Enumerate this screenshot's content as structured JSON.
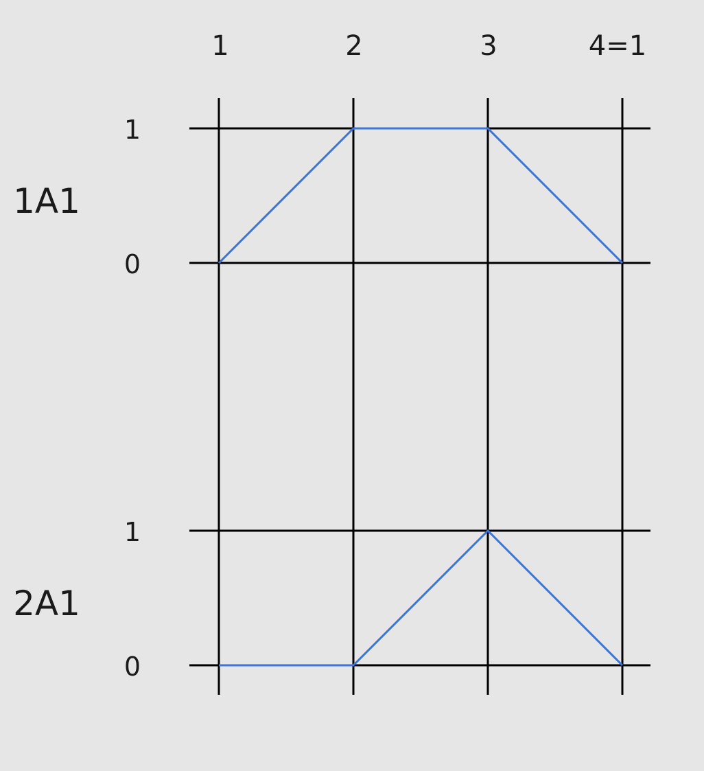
{
  "colors": {
    "background": "#e6e6e6",
    "grid": "#000000",
    "signal": "#3c74d9"
  },
  "step_labels": [
    "1",
    "2",
    "3",
    "4=1"
  ],
  "rows": [
    {
      "label": "1A1",
      "high_label": "1",
      "low_label": "0",
      "levels": [
        0,
        1,
        1,
        0
      ]
    },
    {
      "label": "2A1",
      "high_label": "1",
      "low_label": "0",
      "levels": [
        0,
        0,
        1,
        0
      ]
    }
  ]
}
